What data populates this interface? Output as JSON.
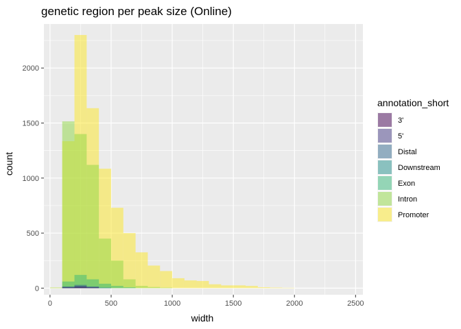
{
  "chart_data": {
    "type": "bar",
    "title": "genetic region per peak size (Online)",
    "xlabel": "width",
    "ylabel": "count",
    "xlim": [
      -50,
      2560
    ],
    "ylim": [
      -60,
      2400
    ],
    "xticks": [
      0,
      500,
      1000,
      1500,
      2000,
      2500
    ],
    "yticks": [
      0,
      500,
      1000,
      1500,
      2000
    ],
    "grid": true,
    "legend": {
      "title": "annotation_short",
      "placement": "right",
      "entries": [
        {
          "label": "3'",
          "color": "#440154"
        },
        {
          "label": "5'",
          "color": "#443A83"
        },
        {
          "label": "Distal",
          "color": "#31688E"
        },
        {
          "label": "Downstream",
          "color": "#21908C"
        },
        {
          "label": "Exon",
          "color": "#35B779"
        },
        {
          "label": "Intron",
          "color": "#8FD744"
        },
        {
          "label": "Promoter",
          "color": "#FDE725"
        }
      ]
    },
    "bin_width": 100,
    "series": [
      {
        "name": "Promoter",
        "color": "#FDE725",
        "bins": [
          [
            50,
            5
          ],
          [
            150,
            1335
          ],
          [
            250,
            2300
          ],
          [
            350,
            1635
          ],
          [
            450,
            1085
          ],
          [
            550,
            730
          ],
          [
            650,
            500
          ],
          [
            750,
            325
          ],
          [
            850,
            205
          ],
          [
            950,
            155
          ],
          [
            1050,
            90
          ],
          [
            1150,
            70
          ],
          [
            1250,
            65
          ],
          [
            1350,
            35
          ],
          [
            1450,
            25
          ],
          [
            1550,
            25
          ],
          [
            1650,
            20
          ],
          [
            1750,
            8
          ],
          [
            1850,
            5
          ],
          [
            1950,
            3
          ]
        ]
      },
      {
        "name": "Intron",
        "color": "#8FD744",
        "bins": [
          [
            50,
            5
          ],
          [
            150,
            1515
          ],
          [
            250,
            1400
          ],
          [
            350,
            1120
          ],
          [
            450,
            450
          ],
          [
            550,
            250
          ],
          [
            650,
            80
          ],
          [
            750,
            20
          ],
          [
            850,
            10
          ],
          [
            950,
            5
          ]
        ]
      },
      {
        "name": "Exon",
        "color": "#35B779",
        "bins": [
          [
            150,
            60
          ],
          [
            250,
            120
          ],
          [
            350,
            80
          ],
          [
            450,
            40
          ],
          [
            550,
            20
          ],
          [
            650,
            8
          ]
        ]
      },
      {
        "name": "Distal",
        "color": "#31688E",
        "bins": [
          [
            150,
            15
          ],
          [
            250,
            30
          ],
          [
            350,
            15
          ],
          [
            450,
            5
          ]
        ]
      },
      {
        "name": "Downstream",
        "color": "#21908C",
        "bins": [
          [
            150,
            10
          ],
          [
            250,
            15
          ],
          [
            350,
            10
          ],
          [
            450,
            5
          ]
        ]
      },
      {
        "name": "5'",
        "color": "#443A83",
        "bins": [
          [
            150,
            10
          ],
          [
            250,
            20
          ],
          [
            350,
            10
          ]
        ]
      },
      {
        "name": "3'",
        "color": "#440154",
        "bins": [
          [
            150,
            5
          ],
          [
            250,
            10
          ],
          [
            350,
            5
          ]
        ]
      }
    ]
  }
}
